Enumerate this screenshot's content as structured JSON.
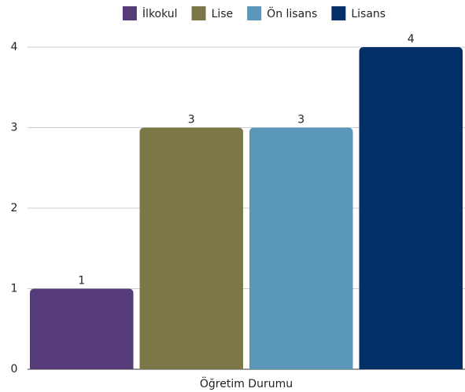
{
  "chart_data": {
    "type": "bar",
    "x_label": "Öğretim Durumu",
    "categories": [
      "Öğretim Durumu"
    ],
    "series": [
      {
        "name": "İlkokul",
        "color": "#553b78",
        "values": [
          1
        ]
      },
      {
        "name": "Lise",
        "color": "#7c7747",
        "values": [
          3
        ]
      },
      {
        "name": "Ön lisans",
        "color": "#5a97bb",
        "values": [
          3
        ]
      },
      {
        "name": "Lisans",
        "color": "#032e66",
        "values": [
          4
        ]
      }
    ],
    "ylim": [
      0,
      4
    ],
    "yticks": [
      0,
      1,
      2,
      3,
      4
    ],
    "grid": true
  }
}
